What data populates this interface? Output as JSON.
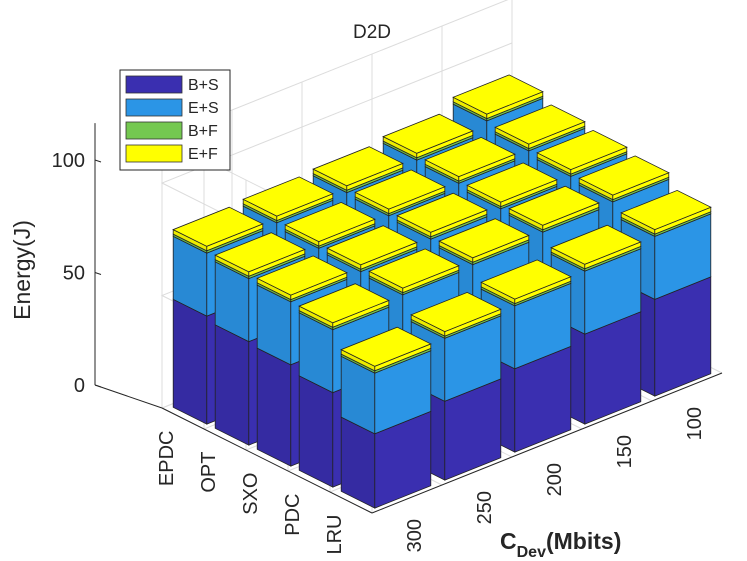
{
  "chart_data": {
    "type": "bar3d",
    "title": "D2D",
    "zlabel": "Energy(J)",
    "xlabel": "",
    "ylabel_main": "C",
    "ylabel_sub": "Dev",
    "ylabel_unit": "(Mbits)",
    "zlim": [
      0,
      120
    ],
    "zticks": [
      "0",
      "50",
      "100"
    ],
    "schemes": [
      "EPDC",
      "OPT",
      "SXO",
      "PDC",
      "LRU"
    ],
    "capacities": [
      "300",
      "250",
      "200",
      "150",
      "100"
    ],
    "legend_position": "top-left",
    "grid": true,
    "series": [
      {
        "name": "B+S",
        "color": "#3a2fb0",
        "values": [
          [
            48,
            49,
            50,
            52,
            56
          ],
          [
            46,
            47,
            49,
            51,
            53
          ],
          [
            45,
            46,
            47,
            49,
            51
          ],
          [
            42,
            44,
            45,
            47,
            49
          ],
          [
            33,
            35,
            37,
            40,
            43
          ]
        ]
      },
      {
        "name": "E+S",
        "color": "#2b95e6",
        "values": [
          [
            28,
            28,
            28,
            28,
            29
          ],
          [
            28,
            28,
            28,
            28,
            28
          ],
          [
            28,
            28,
            29,
            28,
            28
          ],
          [
            28,
            29,
            29,
            29,
            28
          ],
          [
            27,
            28,
            28,
            28,
            28
          ]
        ]
      },
      {
        "name": "B+F",
        "color": "#74c850",
        "values": [
          [
            1,
            1,
            1,
            1,
            1
          ],
          [
            1,
            1,
            1,
            1,
            1
          ],
          [
            1,
            1,
            1,
            1,
            1
          ],
          [
            1,
            1,
            1,
            1,
            1
          ],
          [
            1,
            1,
            1,
            1,
            1
          ]
        ]
      },
      {
        "name": "E+F",
        "color": "#ffff00",
        "values": [
          [
            2,
            2,
            2,
            2,
            2
          ],
          [
            2,
            2,
            2,
            2,
            2
          ],
          [
            2,
            2,
            2,
            2,
            2
          ],
          [
            2,
            2,
            2,
            2,
            2
          ],
          [
            2,
            2,
            2,
            2,
            2
          ]
        ]
      }
    ]
  }
}
